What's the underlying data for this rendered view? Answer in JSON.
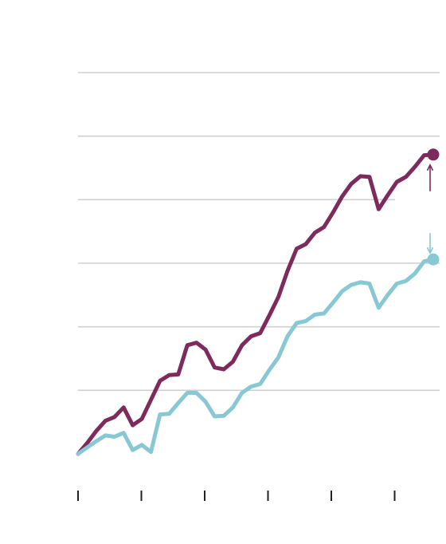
{
  "chart_data": {
    "type": "line",
    "title": "",
    "xlabel": "",
    "ylabel": "",
    "grid": true,
    "legend": "none",
    "ylim": [
      0,
      600
    ],
    "gridlines": [
      100,
      200,
      300,
      400,
      500,
      600
    ],
    "x_tick_count": 6,
    "series": [
      {
        "color": "#7d2a5c",
        "end_marker": true,
        "end_arrow": "up",
        "values": [
          0,
          17,
          36,
          52,
          58,
          73,
          45,
          55,
          85,
          115,
          124,
          125,
          171,
          175,
          164,
          136,
          133,
          145,
          171,
          185,
          190,
          218,
          247,
          288,
          323,
          330,
          348,
          357,
          380,
          405,
          425,
          437,
          436,
          385,
          407,
          428,
          436,
          452,
          470,
          471
        ]
      },
      {
        "color": "#88c8d2",
        "end_marker": true,
        "end_arrow": "down",
        "values": [
          0,
          10,
          20,
          29,
          27,
          33,
          6,
          14,
          3,
          62,
          63,
          80,
          96,
          96,
          82,
          59,
          60,
          73,
          96,
          106,
          110,
          132,
          152,
          185,
          206,
          209,
          219,
          221,
          238,
          256,
          266,
          270,
          268,
          230,
          250,
          268,
          272,
          284,
          303,
          306
        ]
      }
    ]
  }
}
